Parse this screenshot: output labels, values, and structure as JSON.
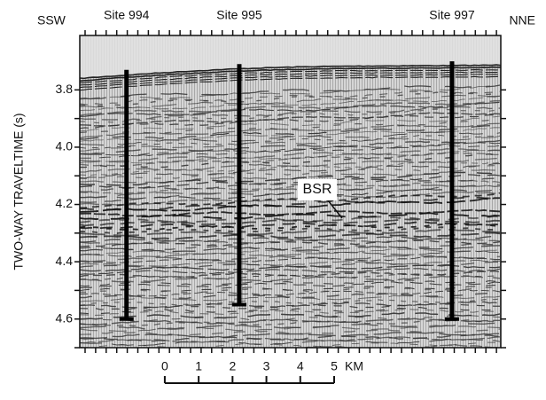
{
  "chart_data": {
    "type": "seismic",
    "left_label": "SSW",
    "right_label": "NNE",
    "ylabel": "TWO-WAY TRAVELTIME (s)",
    "ylim": [
      3.61,
      4.7
    ],
    "yticks": [
      3.8,
      {
        "value": 4,
        "label": "4.0"
      },
      4.2,
      4.4,
      4.6
    ],
    "xlim": [
      -2.51,
      9.92
    ],
    "xticks": [
      0,
      1,
      2,
      3,
      4,
      5
    ],
    "xunit": "KM",
    "sites": [
      {
        "name": "Site 994",
        "x": -1.13,
        "top": 3.73,
        "bottom": 4.6
      },
      {
        "name": "Site 995",
        "x": 2.2,
        "top": 3.71,
        "bottom": 4.55
      },
      {
        "name": "Site 997",
        "x": 8.48,
        "top": 3.7,
        "bottom": 4.6
      }
    ],
    "annotation": "BSR"
  }
}
